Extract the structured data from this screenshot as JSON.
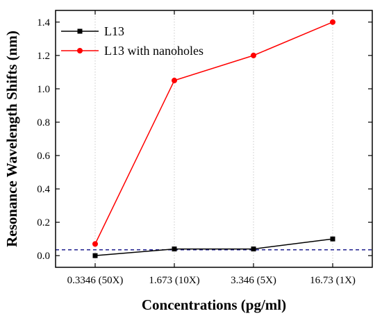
{
  "chart_data": {
    "type": "line",
    "categories": [
      "0.3346 (50X)",
      "1.673 (10X)",
      "3.346 (5X)",
      "16.73 (1X)"
    ],
    "series": [
      {
        "name": "L13",
        "values": [
          0.0,
          0.04,
          0.04,
          0.1
        ],
        "color": "#000000",
        "marker": "square"
      },
      {
        "name": "L13 with nanoholes",
        "values": [
          0.07,
          1.05,
          1.2,
          1.4
        ],
        "color": "#ff0000",
        "marker": "circle"
      }
    ],
    "xlabel": "Concentrations (pg/ml)",
    "ylabel": "Resonance Wavelength Shifts (nm)",
    "ylim": [
      -0.07,
      1.47
    ],
    "yticks": [
      "0.0",
      "0.2",
      "0.4",
      "0.6",
      "0.8",
      "1.0",
      "1.2",
      "1.4"
    ],
    "reference_line": {
      "y": 0.035,
      "color": "#1f1f8f",
      "style": "dashed"
    },
    "vertical_gridlines": "dotted",
    "legend_position": "top-left"
  }
}
